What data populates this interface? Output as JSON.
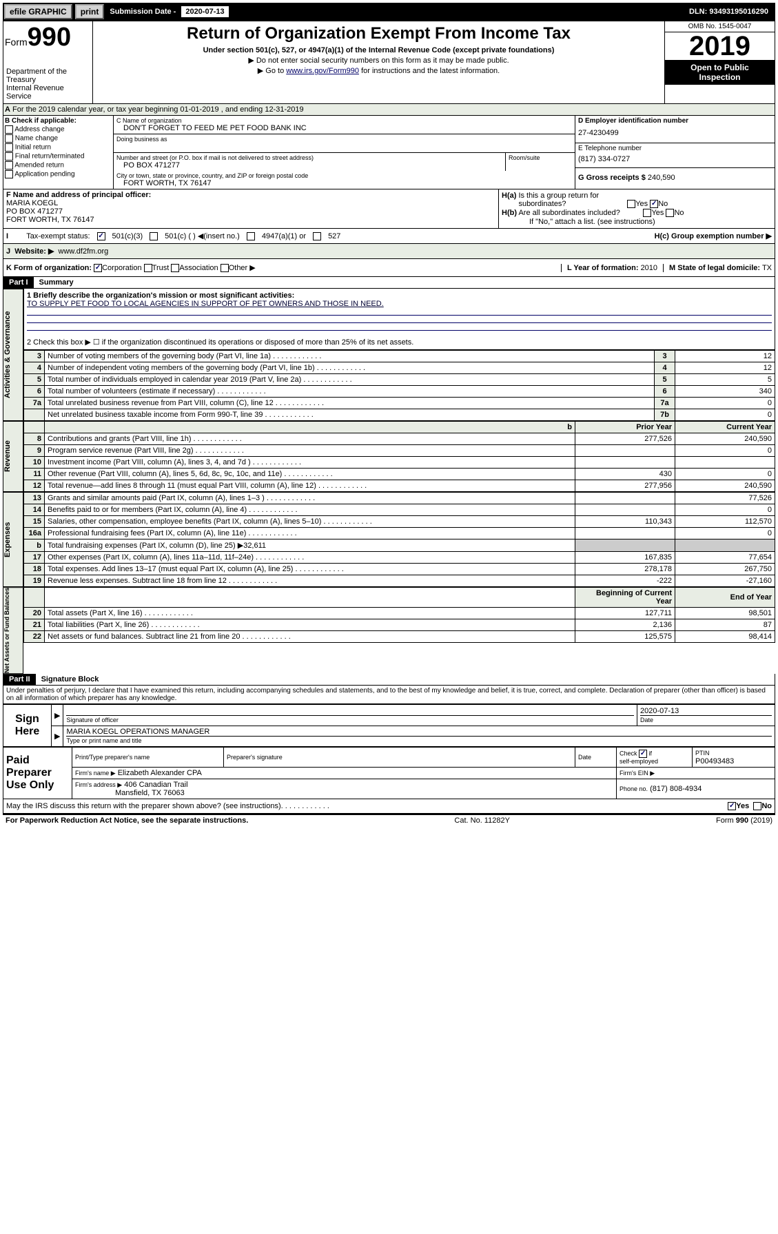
{
  "top": {
    "efile": "efile GRAPHIC",
    "print": "print",
    "sub_label": "Submission Date - ",
    "sub_date": "2020-07-13",
    "dln": "DLN: 93493195016290"
  },
  "header": {
    "form": "Form",
    "num": "990",
    "dept": "Department of the Treasury\nInternal Revenue Service",
    "title": "Return of Organization Exempt From Income Tax",
    "sub": "Under section 501(c), 527, or 4947(a)(1) of the Internal Revenue Code (except private foundations)",
    "note1": "▶ Do not enter social security numbers on this form as it may be made public.",
    "note2_pre": "▶ Go to ",
    "note2_link": "www.irs.gov/Form990",
    "note2_post": " for instructions and the latest information.",
    "omb": "OMB No. 1545-0047",
    "year": "2019",
    "open": "Open to Public Inspection"
  },
  "rowA": "For the 2019 calendar year, or tax year beginning 01-01-2019    , and ending 12-31-2019",
  "boxB": {
    "title": "B Check if applicable:",
    "items": [
      "Address change",
      "Name change",
      "Initial return",
      "Final return/terminated",
      "Amended return",
      "Application pending"
    ]
  },
  "boxC": {
    "name_label": "C Name of organization",
    "name": "DON'T FORGET TO FEED ME PET FOOD BANK INC",
    "dba_label": "Doing business as",
    "dba": "",
    "addr_label": "Number and street (or P.O. box if mail is not delivered to street address)",
    "addr": "PO BOX 471277",
    "room_label": "Room/suite",
    "city_label": "City or town, state or province, country, and ZIP or foreign postal code",
    "city": "FORT WORTH, TX   76147"
  },
  "boxD": {
    "ein_label": "D Employer identification number",
    "ein": "27-4230499",
    "tel_label": "E Telephone number",
    "tel": "(817) 334-0727",
    "gross_label": "G Gross receipts $",
    "gross": "240,590"
  },
  "boxF": {
    "label": "F  Name and address of principal officer:",
    "name": "MARIA KOEGL",
    "addr1": "PO BOX 471277",
    "addr2": "FORT WORTH, TX  76147"
  },
  "boxH": {
    "ha": "H(a)  Is this a group return for subordinates?",
    "hb": "H(b)  Are all subordinates included?",
    "hb_note": "If \"No,\" attach a list. (see instructions)",
    "hc": "H(c)  Group exemption number ▶"
  },
  "rowI": {
    "label": "Tax-exempt status:",
    "opt1": "501(c)(3)",
    "opt2": "501(c) (   ) ◀(insert no.)",
    "opt3": "4947(a)(1) or",
    "opt4": "527"
  },
  "rowJ": {
    "label": "Website: ▶",
    "val": "www.df2fm.org"
  },
  "rowK": {
    "label": "K Form of organization:",
    "corp": "Corporation",
    "trust": "Trust",
    "assoc": "Association",
    "other": "Other ▶"
  },
  "rowL": {
    "label": "L Year of formation:",
    "val": "2010"
  },
  "rowM": {
    "label": "M State of legal domicile:",
    "val": "TX"
  },
  "partI": {
    "label": "Part I",
    "title": "Summary"
  },
  "summary": {
    "q1_label": "1  Briefly describe the organization's mission or most significant activities:",
    "q1_text": "TO SUPPLY PET FOOD TO LOCAL AGENCIES IN SUPPORT OF PET OWNERS AND THOSE IN NEED.",
    "q2": "2   Check this box ▶ ☐  if the organization discontinued its operations or disposed of more than 25% of its net assets.",
    "rows_gov": [
      {
        "n": "3",
        "t": "Number of voting members of the governing body (Part VI, line 1a)",
        "a": "3",
        "v": "12"
      },
      {
        "n": "4",
        "t": "Number of independent voting members of the governing body (Part VI, line 1b)",
        "a": "4",
        "v": "12"
      },
      {
        "n": "5",
        "t": "Total number of individuals employed in calendar year 2019 (Part V, line 2a)",
        "a": "5",
        "v": "5"
      },
      {
        "n": "6",
        "t": "Total number of volunteers (estimate if necessary)",
        "a": "6",
        "v": "340"
      },
      {
        "n": "7a",
        "t": "Total unrelated business revenue from Part VIII, column (C), line 12",
        "a": "7a",
        "v": "0"
      },
      {
        "n": "",
        "t": "Net unrelated business taxable income from Form 990-T, line 39",
        "a": "7b",
        "v": "0"
      }
    ],
    "th_prior": "Prior Year",
    "th_curr": "Current Year",
    "rows_rev": [
      {
        "n": "8",
        "t": "Contributions and grants (Part VIII, line 1h)",
        "p": "277,526",
        "c": "240,590"
      },
      {
        "n": "9",
        "t": "Program service revenue (Part VIII, line 2g)",
        "p": "",
        "c": "0"
      },
      {
        "n": "10",
        "t": "Investment income (Part VIII, column (A), lines 3, 4, and 7d )",
        "p": "",
        "c": ""
      },
      {
        "n": "11",
        "t": "Other revenue (Part VIII, column (A), lines 5, 6d, 8c, 9c, 10c, and 11e)",
        "p": "430",
        "c": "0"
      },
      {
        "n": "12",
        "t": "Total revenue—add lines 8 through 11 (must equal Part VIII, column (A), line 12)",
        "p": "277,956",
        "c": "240,590"
      }
    ],
    "rows_exp": [
      {
        "n": "13",
        "t": "Grants and similar amounts paid (Part IX, column (A), lines 1–3 )",
        "p": "",
        "c": "77,526"
      },
      {
        "n": "14",
        "t": "Benefits paid to or for members (Part IX, column (A), line 4)",
        "p": "",
        "c": "0"
      },
      {
        "n": "15",
        "t": "Salaries, other compensation, employee benefits (Part IX, column (A), lines 5–10)",
        "p": "110,343",
        "c": "112,570"
      },
      {
        "n": "16a",
        "t": "Professional fundraising fees (Part IX, column (A), line 11e)",
        "p": "",
        "c": "0"
      },
      {
        "n": "b",
        "t": "Total fundraising expenses (Part IX, column (D), line 25) ▶32,611",
        "p": "",
        "c": "",
        "noval": true
      },
      {
        "n": "17",
        "t": "Other expenses (Part IX, column (A), lines 11a–11d, 11f–24e)",
        "p": "167,835",
        "c": "77,654"
      },
      {
        "n": "18",
        "t": "Total expenses. Add lines 13–17 (must equal Part IX, column (A), line 25)",
        "p": "278,178",
        "c": "267,750"
      },
      {
        "n": "19",
        "t": "Revenue less expenses. Subtract line 18 from line 12",
        "p": "-222",
        "c": "-27,160"
      }
    ],
    "th_beg": "Beginning of Current Year",
    "th_end": "End of Year",
    "rows_net": [
      {
        "n": "20",
        "t": "Total assets (Part X, line 16)",
        "p": "127,711",
        "c": "98,501"
      },
      {
        "n": "21",
        "t": "Total liabilities (Part X, line 26)",
        "p": "2,136",
        "c": "87"
      },
      {
        "n": "22",
        "t": "Net assets or fund balances. Subtract line 21 from line 20",
        "p": "125,575",
        "c": "98,414"
      }
    ]
  },
  "partII": {
    "label": "Part II",
    "title": "Signature Block"
  },
  "sig": {
    "perjury": "Under penalties of perjury, I declare that I have examined this return, including accompanying schedules and statements, and to the best of my knowledge and belief, it is true, correct, and complete. Declaration of preparer (other than officer) is based on all information of which preparer has any knowledge.",
    "sign Here": "Sign Here",
    "sig_officer": "Signature of officer",
    "date": "2020-07-13",
    "date_label": "Date",
    "officer_name": "MARIA KOEGL OPERATIONS MANAGER",
    "type_label": "Type or print name and title",
    "paid": "Paid Preparer Use Only",
    "prep_name_label": "Print/Type preparer's name",
    "prep_sig_label": "Preparer's signature",
    "prep_date_label": "Date",
    "check_label": "Check ☑ if self-employed",
    "ptin_label": "PTIN",
    "ptin": "P00493483",
    "firm_name_label": "Firm's name    ▶",
    "firm_name": "Elizabeth Alexander CPA",
    "firm_ein_label": "Firm's EIN ▶",
    "firm_addr_label": "Firm's address ▶",
    "firm_addr": "406 Canadian Trail",
    "firm_addr2": "Mansfield, TX  76063",
    "phone_label": "Phone no.",
    "phone": "(817) 808-4934",
    "irs_q": "May the IRS discuss this return with the preparer shown above? (see instructions)"
  },
  "footer": {
    "left": "For Paperwork Reduction Act Notice, see the separate instructions.",
    "mid": "Cat. No. 11282Y",
    "right": "Form 990 (2019)"
  },
  "sides": {
    "gov": "Activities & Governance",
    "rev": "Revenue",
    "exp": "Expenses",
    "net": "Net Assets or Fund Balances"
  },
  "yes": "Yes",
  "no": "No"
}
